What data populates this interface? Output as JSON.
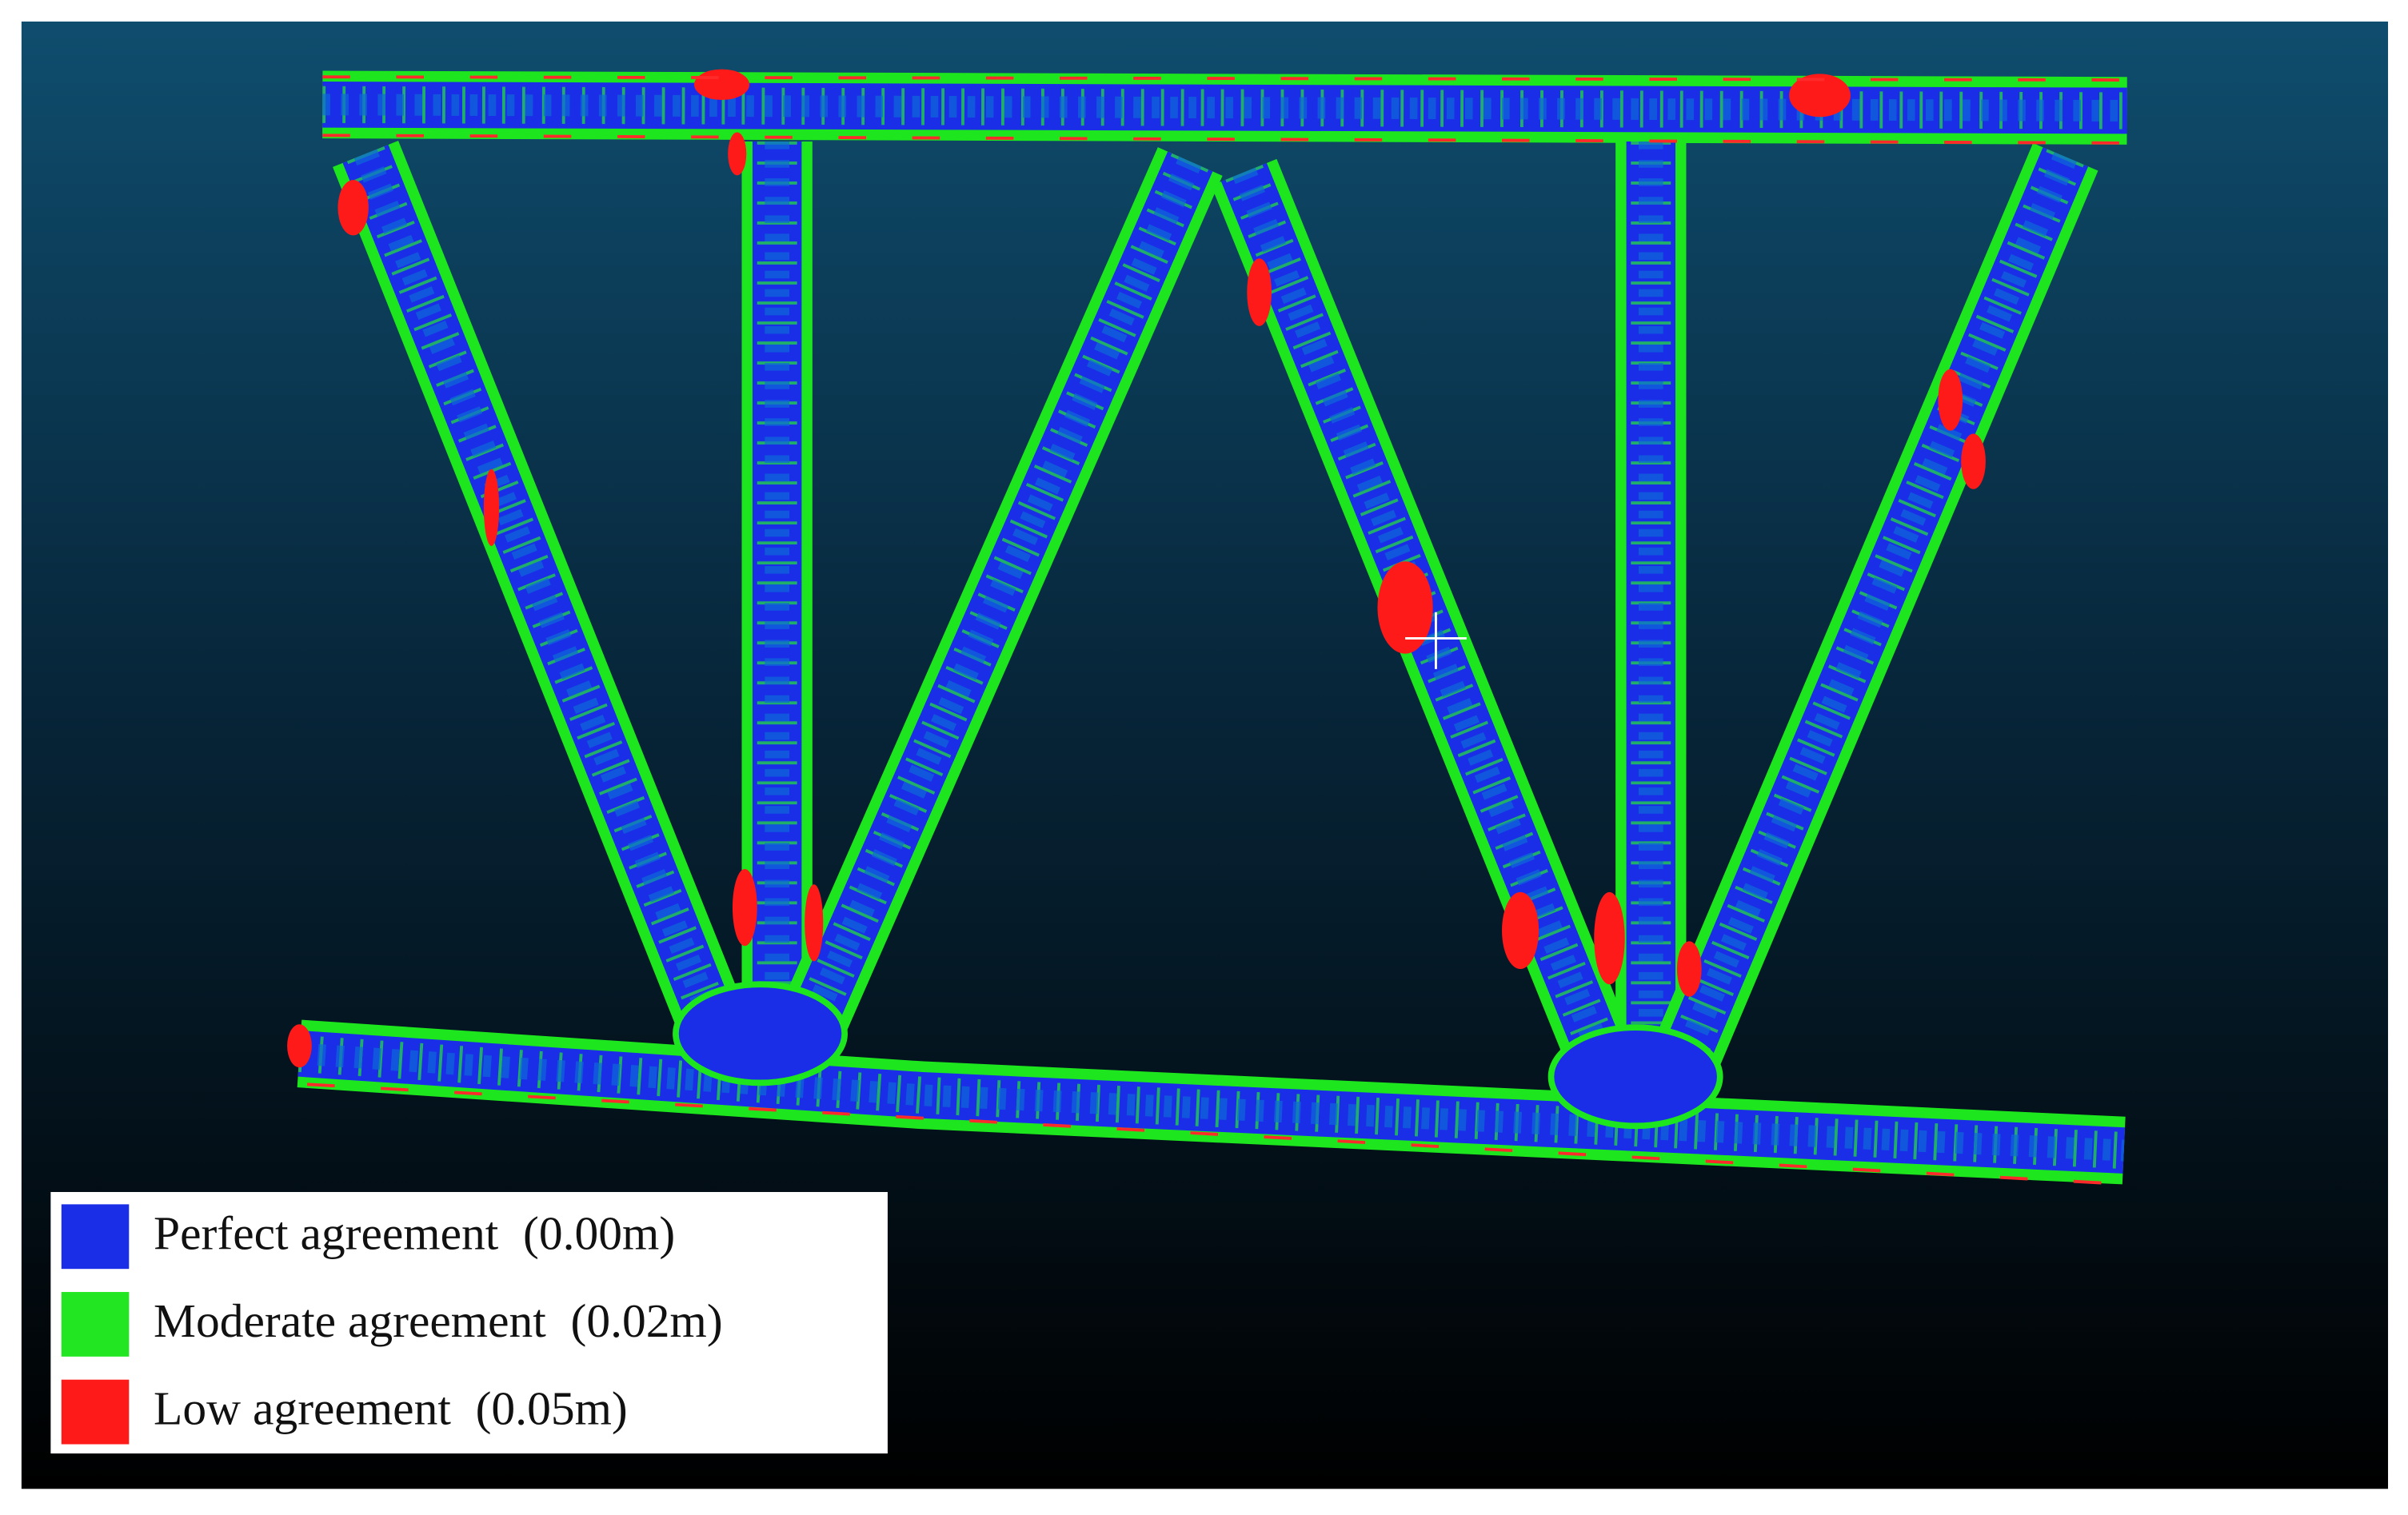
{
  "legend": {
    "items": [
      {
        "label": "Perfect agreement",
        "value": "(0.00m)",
        "color": "#1a2ee8"
      },
      {
        "label": "Moderate agreement",
        "value": "(0.02m)",
        "color": "#22e622"
      },
      {
        "label": "Low agreement",
        "value": "(0.05m)",
        "color": "#ff1a1a"
      }
    ]
  }
}
